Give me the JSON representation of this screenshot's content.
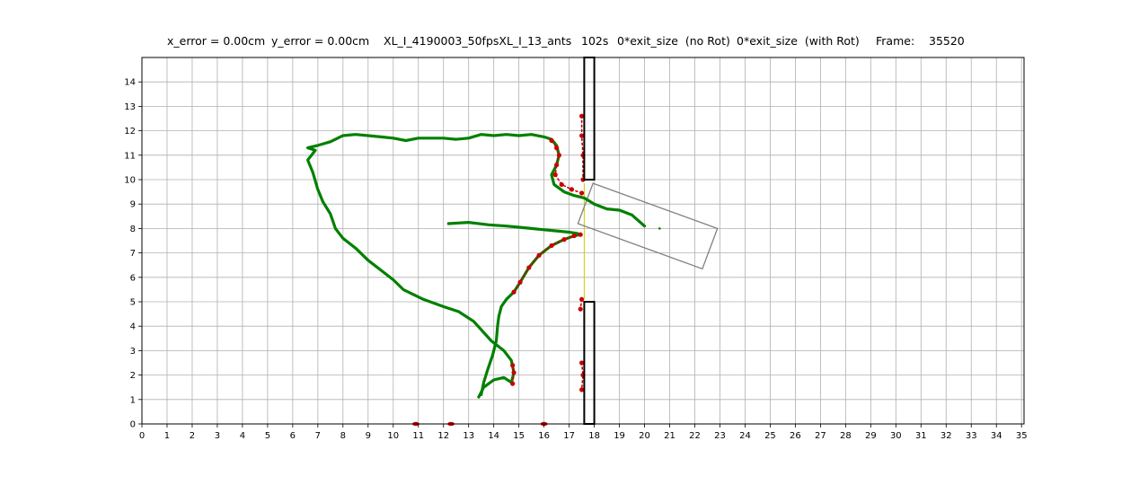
{
  "header": {
    "x_error": "x_error = 0.00cm",
    "y_error": "y_error = 0.00cm",
    "experiment": "XL_I_4190003_50fpsXL_I_13_ants",
    "time": "102s",
    "exit_no_rot": "0*exit_size  (no Rot)",
    "exit_with_rot": "0*exit_size  (with Rot)",
    "frame_label": "Frame:",
    "frame_value": "35520"
  },
  "chart_data": {
    "type": "scatter",
    "title": "",
    "xlabel": "",
    "ylabel": "",
    "xlim": [
      0,
      35.1
    ],
    "ylim": [
      0,
      15
    ],
    "grid": true,
    "x_ticks": [
      0,
      1,
      2,
      3,
      4,
      5,
      6,
      7,
      8,
      9,
      10,
      11,
      12,
      13,
      14,
      15,
      16,
      17,
      18,
      19,
      20,
      21,
      22,
      23,
      24,
      25,
      26,
      27,
      28,
      29,
      30,
      31,
      32,
      33,
      34,
      35
    ],
    "y_ticks": [
      0,
      1,
      2,
      3,
      4,
      5,
      6,
      7,
      8,
      9,
      10,
      11,
      12,
      13,
      14
    ],
    "colors": {
      "trajectory": "#008000",
      "contact": "#cc0000",
      "wall": "#000000",
      "load": "#808080",
      "link": "#cccc00",
      "grid": "#b0b0b0"
    },
    "walls": [
      {
        "x": [
          17.6,
          18.0
        ],
        "y": [
          10.0,
          15.0
        ]
      },
      {
        "x": [
          17.6,
          18.0
        ],
        "y": [
          0.0,
          5.0
        ]
      }
    ],
    "load_rectangle": [
      [
        17.95,
        9.85
      ],
      [
        22.9,
        8.0
      ],
      [
        22.3,
        6.35
      ],
      [
        17.35,
        8.2
      ]
    ],
    "load_center": [
      20.6,
      8.0
    ],
    "link_line": [
      [
        17.6,
        9.85
      ],
      [
        17.6,
        5.1
      ]
    ],
    "series": [
      {
        "points": [
          [
            12.2,
            8.2
          ],
          [
            13.0,
            8.25
          ],
          [
            13.8,
            8.15
          ],
          [
            14.5,
            8.1
          ],
          [
            15.0,
            8.05
          ],
          [
            15.5,
            8.0
          ],
          [
            16.0,
            7.95
          ],
          [
            16.5,
            7.9
          ],
          [
            17.0,
            7.85
          ],
          [
            17.3,
            7.8
          ],
          [
            17.45,
            7.75
          ],
          [
            17.2,
            7.7
          ],
          [
            16.8,
            7.55
          ],
          [
            16.3,
            7.3
          ],
          [
            15.8,
            6.9
          ],
          [
            15.4,
            6.4
          ],
          [
            15.05,
            5.8
          ],
          [
            14.8,
            5.4
          ],
          [
            14.5,
            5.1
          ],
          [
            14.3,
            4.8
          ],
          [
            14.2,
            4.4
          ],
          [
            14.15,
            4.0
          ],
          [
            14.1,
            3.4
          ],
          [
            13.95,
            2.8
          ],
          [
            13.75,
            2.2
          ],
          [
            13.6,
            1.7
          ],
          [
            13.5,
            1.2
          ]
        ]
      },
      {
        "points": [
          [
            13.4,
            1.1
          ],
          [
            13.6,
            1.5
          ],
          [
            14.0,
            1.8
          ],
          [
            14.4,
            1.9
          ],
          [
            14.7,
            1.7
          ],
          [
            14.8,
            2.1
          ],
          [
            14.7,
            2.6
          ],
          [
            14.4,
            3.0
          ],
          [
            13.9,
            3.4
          ],
          [
            13.2,
            4.2
          ],
          [
            12.6,
            4.6
          ],
          [
            12.0,
            4.8
          ],
          [
            11.2,
            5.1
          ],
          [
            10.4,
            5.5
          ],
          [
            10.0,
            5.9
          ],
          [
            9.5,
            6.3
          ],
          [
            9.0,
            6.7
          ],
          [
            8.5,
            7.2
          ],
          [
            8.0,
            7.6
          ],
          [
            7.7,
            8.0
          ],
          [
            7.5,
            8.6
          ],
          [
            7.2,
            9.1
          ],
          [
            7.0,
            9.6
          ],
          [
            6.8,
            10.3
          ],
          [
            6.6,
            10.8
          ],
          [
            6.9,
            11.2
          ],
          [
            6.6,
            11.3
          ],
          [
            7.0,
            11.4
          ],
          [
            7.5,
            11.55
          ],
          [
            8.0,
            11.8
          ],
          [
            8.5,
            11.85
          ],
          [
            9.0,
            11.8
          ],
          [
            9.5,
            11.75
          ],
          [
            10.0,
            11.7
          ],
          [
            10.5,
            11.6
          ],
          [
            11.0,
            11.7
          ],
          [
            11.5,
            11.7
          ],
          [
            12.0,
            11.7
          ],
          [
            12.5,
            11.65
          ],
          [
            13.0,
            11.7
          ],
          [
            13.5,
            11.85
          ],
          [
            14.0,
            11.8
          ],
          [
            14.5,
            11.85
          ],
          [
            15.0,
            11.8
          ],
          [
            15.5,
            11.85
          ],
          [
            16.0,
            11.75
          ],
          [
            16.3,
            11.65
          ],
          [
            16.5,
            11.4
          ],
          [
            16.6,
            11.0
          ],
          [
            16.5,
            10.6
          ],
          [
            16.3,
            10.2
          ],
          [
            16.4,
            9.8
          ],
          [
            16.8,
            9.5
          ],
          [
            17.2,
            9.35
          ],
          [
            17.6,
            9.25
          ],
          [
            18.0,
            9.0
          ],
          [
            18.5,
            8.8
          ],
          [
            19.0,
            8.75
          ],
          [
            19.5,
            8.55
          ],
          [
            20.0,
            8.1
          ]
        ]
      }
    ],
    "contact_segments": [
      {
        "points": [
          [
            17.5,
            9.45
          ],
          [
            17.1,
            9.6
          ],
          [
            16.7,
            9.8
          ],
          [
            16.45,
            10.2
          ],
          [
            16.5,
            10.6
          ],
          [
            16.6,
            11.0
          ],
          [
            16.5,
            11.3
          ],
          [
            16.3,
            11.6
          ]
        ]
      },
      {
        "points": [
          [
            17.45,
            7.75
          ],
          [
            17.2,
            7.7
          ],
          [
            16.8,
            7.55
          ],
          [
            16.3,
            7.3
          ],
          [
            15.8,
            6.9
          ],
          [
            15.4,
            6.4
          ],
          [
            15.05,
            5.8
          ],
          [
            14.8,
            5.4
          ]
        ]
      },
      {
        "points": [
          [
            14.75,
            1.65
          ],
          [
            14.8,
            2.1
          ],
          [
            14.75,
            2.4
          ]
        ]
      },
      {
        "points": [
          [
            17.5,
            12.6
          ],
          [
            17.5,
            11.8
          ],
          [
            17.55,
            11.0
          ],
          [
            17.55,
            10.0
          ]
        ]
      },
      {
        "points": [
          [
            17.5,
            5.1
          ],
          [
            17.45,
            4.7
          ]
        ]
      },
      {
        "points": [
          [
            17.5,
            2.5
          ],
          [
            17.55,
            2.0
          ],
          [
            17.5,
            1.4
          ]
        ]
      }
    ],
    "edge_contacts": [
      [
        10.9,
        0.0
      ],
      [
        12.3,
        0.0
      ],
      [
        16.0,
        0.0
      ]
    ]
  }
}
